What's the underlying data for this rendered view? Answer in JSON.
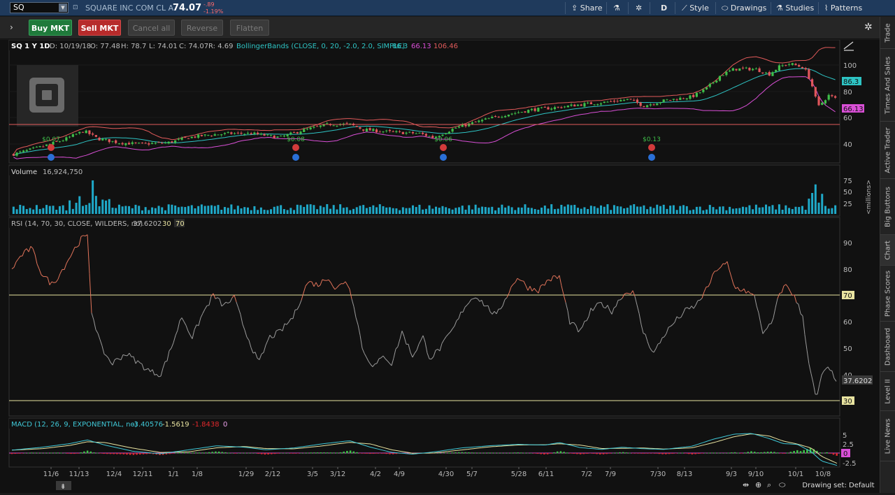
{
  "topbar": {
    "symbol": "SQ",
    "company": "SQUARE INC COM CL A",
    "last": "74.07",
    "change": "-.89",
    "change_pct": "-1.19%",
    "share": "Share",
    "period": "D",
    "style": "Style",
    "drawings": "Drawings",
    "studies": "Studies",
    "patterns": "Patterns"
  },
  "toolbar": {
    "buy": "Buy MKT",
    "sell": "Sell MKT",
    "cancel_all": "Cancel all",
    "reverse": "Reverse",
    "flatten": "Flatten"
  },
  "price_pane": {
    "header": [
      "SQ 1 Y 1D",
      "D: 10/19/18",
      "O: 77.48",
      "H: 78.7",
      "L: 74.01",
      "C: 74.07",
      "R: 4.69"
    ],
    "study": "BollingerBands (CLOSE, 0, 20, -2.0, 2.0, SIMPLE)",
    "study_values": [
      "86.3",
      "66.13",
      "106.46"
    ],
    "yticks": [
      "100",
      "80",
      "60",
      "40"
    ],
    "labels": {
      "middle": "86.3",
      "lower": "66.13"
    },
    "dividends": [
      {
        "amount": "$0.07"
      },
      {
        "amount": "$0.08"
      },
      {
        "amount": "$0.06"
      },
      {
        "amount": "$0.13"
      }
    ]
  },
  "volume_pane": {
    "label": "Volume",
    "value": "16,924,750",
    "yticks": [
      "75",
      "50",
      "25"
    ],
    "unit": "<millions>"
  },
  "rsi_pane": {
    "label": "RSI (14, 70, 30, CLOSE, WILDERS, no)",
    "value": "37.6202",
    "levels": [
      "30",
      "70"
    ],
    "yticks": [
      "90",
      "80",
      "70",
      "60",
      "50",
      "40",
      "30"
    ],
    "tag_value": "37.6202",
    "tag_70": "70",
    "tag_30": "30"
  },
  "macd_pane": {
    "label": "MACD (12, 26, 9, EXPONENTIAL, no)",
    "values": [
      "-3.40576",
      "-1.5619",
      "-1.8438",
      "0"
    ],
    "yticks": [
      "5",
      "2.5",
      "0",
      "-2.5"
    ]
  },
  "xaxis": {
    "labels": [
      "11/6",
      "11/13",
      "12/4",
      "12/11",
      "1/1",
      "1/8",
      "1/29",
      "2/12",
      "3/5",
      "3/12",
      "4/2",
      "4/9",
      "4/30",
      "5/7",
      "5/28",
      "6/11",
      "7/2",
      "7/9",
      "7/30",
      "8/13",
      "9/3",
      "9/10",
      "10/1",
      "10/8"
    ]
  },
  "footer": {
    "drawing_set": "Drawing set: Default"
  },
  "sidebar": {
    "tabs": [
      "Trade",
      "Times And Sales",
      "Active Trader",
      "Big Buttons",
      "Chart",
      "Phase Scores",
      "Dashboard",
      "Level II",
      "Live News"
    ]
  },
  "colors": {
    "up": "#3fbf4a",
    "down": "#e0565b",
    "bb_upper": "#e15a5a",
    "bb_mid": "#2ec4c4",
    "bb_lower": "#d94fd6",
    "volume": "#1fa9c9",
    "rsi_line": "#9a9a9a",
    "rsi_over": "#e2745a",
    "rsi_level": "#e8e3a0",
    "macd": "#3fc7d6",
    "signal": "#e8e3a0",
    "hist_up": "#3fbf4a",
    "hist_down": "#e0282c"
  },
  "icons": [
    "share-icon",
    "flask-icon",
    "gear-icon",
    "style-icon",
    "drawings-icon",
    "studies-icon",
    "patterns-icon",
    "chevron-right-icon",
    "square-logo-icon",
    "magnify-icon"
  ]
}
